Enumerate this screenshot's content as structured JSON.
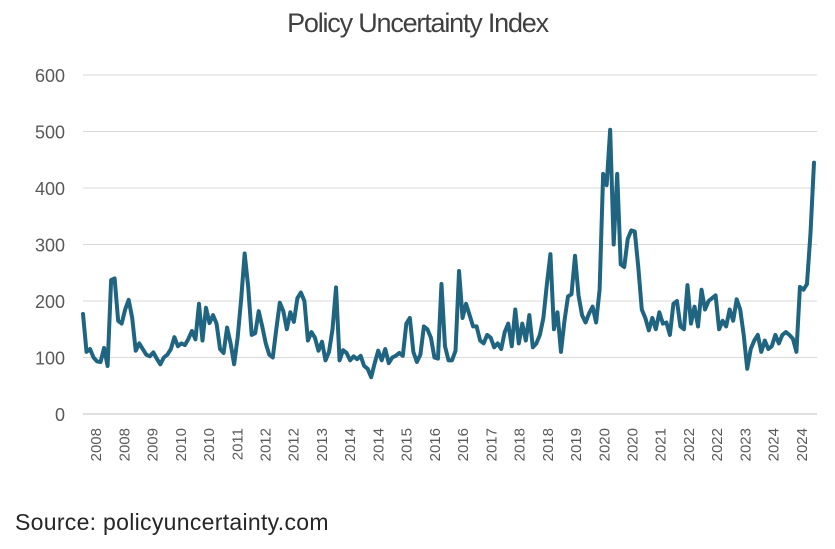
{
  "chart_data": {
    "type": "line",
    "title": "Policy Uncertainty Index",
    "xlabel": "",
    "ylabel": "",
    "ylim": [
      0,
      600
    ],
    "yticks": [
      0,
      100,
      200,
      300,
      400,
      500,
      600
    ],
    "xtick_labels": [
      "2008",
      "2008",
      "2009",
      "2010",
      "2010",
      "2011",
      "2012",
      "2012",
      "2013",
      "2014",
      "2014",
      "2015",
      "2016",
      "2016",
      "2017",
      "2018",
      "2018",
      "2019",
      "2020",
      "2020",
      "2021",
      "2022",
      "2022",
      "2023",
      "2024",
      "2024"
    ],
    "grid": true,
    "legend": "none",
    "line_color": "#1f6480",
    "series": [
      {
        "name": "Policy Uncertainty Index",
        "start": "2008-01",
        "frequency": "monthly",
        "values": [
          177,
          110,
          115,
          100,
          93,
          92,
          117,
          85,
          237,
          240,
          165,
          160,
          185,
          202,
          170,
          112,
          125,
          115,
          105,
          102,
          109,
          98,
          88,
          100,
          105,
          115,
          136,
          120,
          125,
          122,
          133,
          147,
          132,
          195,
          130,
          188,
          161,
          175,
          160,
          115,
          108,
          153,
          125,
          88,
          135,
          203,
          284,
          225,
          140,
          143,
          182,
          155,
          125,
          105,
          100,
          150,
          197,
          182,
          150,
          180,
          163,
          205,
          215,
          200,
          130,
          145,
          135,
          112,
          128,
          95,
          110,
          150,
          224,
          95,
          113,
          108,
          95,
          102,
          97,
          103,
          85,
          80,
          65,
          90,
          112,
          95,
          115,
          90,
          100,
          103,
          108,
          103,
          160,
          170,
          110,
          92,
          105,
          155,
          150,
          135,
          100,
          98,
          230,
          120,
          95,
          95,
          112,
          253,
          170,
          195,
          175,
          155,
          155,
          130,
          125,
          140,
          135,
          118,
          125,
          115,
          145,
          160,
          120,
          185,
          125,
          160,
          130,
          175,
          118,
          125,
          140,
          170,
          230,
          283,
          150,
          180,
          110,
          165,
          208,
          212,
          280,
          210,
          175,
          162,
          178,
          190,
          162,
          220,
          425,
          405,
          503,
          300,
          425,
          265,
          260,
          310,
          325,
          323,
          260,
          185,
          170,
          148,
          170,
          150,
          180,
          160,
          162,
          140,
          195,
          200,
          155,
          150,
          228,
          160,
          190,
          155,
          220,
          185,
          200,
          205,
          210,
          150,
          165,
          155,
          185,
          165,
          203,
          185,
          140,
          80,
          115,
          130,
          140,
          110,
          130,
          115,
          120,
          140,
          125,
          140,
          145,
          140,
          133,
          110,
          225,
          220,
          230,
          320,
          445
        ]
      }
    ]
  },
  "source_text": "Source: policyuncertainty.com"
}
